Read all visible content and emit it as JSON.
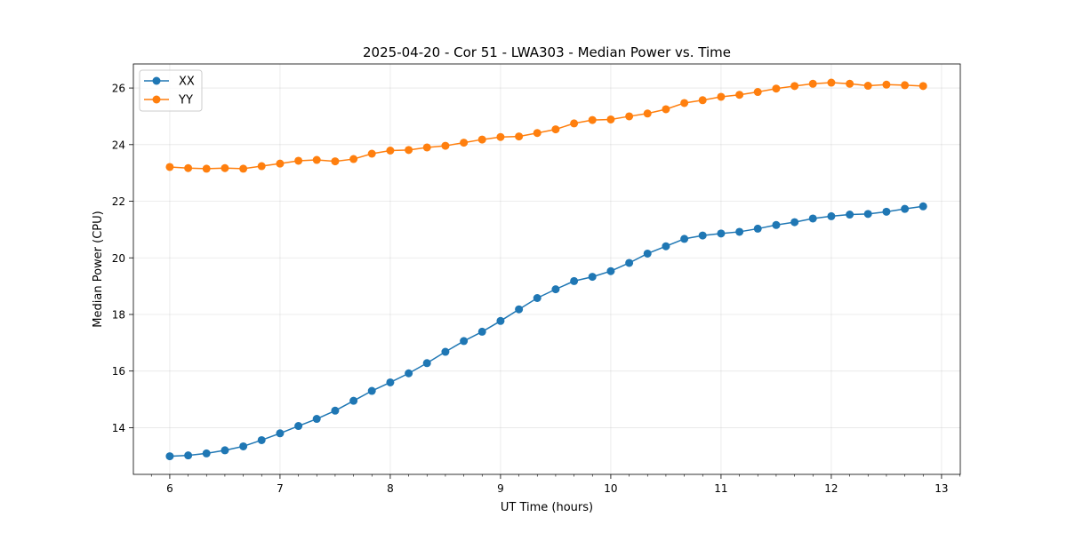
{
  "chart_data": {
    "type": "line",
    "title": "2025-04-20 - Cor 51 - LWA303 - Median Power vs. Time",
    "xlabel": "UT Time (hours)",
    "ylabel": "Median Power (CPU)",
    "xlim": [
      5.67,
      13.17
    ],
    "ylim": [
      12.35,
      26.85
    ],
    "xticks": [
      6,
      7,
      8,
      9,
      10,
      11,
      12,
      13
    ],
    "xtick_labels": [
      "6",
      "7",
      "8",
      "9",
      "10",
      "11",
      "12",
      "13"
    ],
    "yticks": [
      14,
      16,
      18,
      20,
      22,
      24,
      26
    ],
    "ytick_labels": [
      "14",
      "16",
      "18",
      "20",
      "22",
      "24",
      "26"
    ],
    "grid": true,
    "legend_position": "top-left",
    "x": [
      6.0,
      6.167,
      6.333,
      6.5,
      6.667,
      6.833,
      7.0,
      7.167,
      7.333,
      7.5,
      7.667,
      7.833,
      8.0,
      8.167,
      8.333,
      8.5,
      8.667,
      8.833,
      9.0,
      9.167,
      9.333,
      9.5,
      9.667,
      9.833,
      10.0,
      10.167,
      10.333,
      10.5,
      10.667,
      10.833,
      11.0,
      11.167,
      11.333,
      11.5,
      11.667,
      11.833,
      12.0,
      12.167,
      12.333,
      12.5,
      12.667,
      12.833
    ],
    "series": [
      {
        "name": "XX",
        "color": "#1f77b4",
        "values": [
          12.99,
          13.02,
          13.09,
          13.2,
          13.34,
          13.56,
          13.8,
          14.06,
          14.31,
          14.6,
          14.95,
          15.3,
          15.6,
          15.92,
          16.28,
          16.68,
          17.06,
          17.39,
          17.77,
          18.18,
          18.58,
          18.89,
          19.18,
          19.33,
          19.53,
          19.82,
          20.15,
          20.41,
          20.67,
          20.79,
          20.86,
          20.92,
          21.03,
          21.16,
          21.26,
          21.39,
          21.47,
          21.53,
          21.55,
          21.63,
          21.73,
          21.82
        ]
      },
      {
        "name": "YY",
        "color": "#ff7f0e",
        "values": [
          23.21,
          23.17,
          23.15,
          23.17,
          23.15,
          23.24,
          23.33,
          23.43,
          23.46,
          23.41,
          23.49,
          23.68,
          23.79,
          23.81,
          23.9,
          23.96,
          24.07,
          24.18,
          24.27,
          24.29,
          24.41,
          24.54,
          24.75,
          24.87,
          24.89,
          25.0,
          25.1,
          25.25,
          25.47,
          25.57,
          25.69,
          25.76,
          25.86,
          25.98,
          26.07,
          26.15,
          26.19,
          26.15,
          26.08,
          26.12,
          26.1,
          26.07
        ]
      }
    ]
  }
}
